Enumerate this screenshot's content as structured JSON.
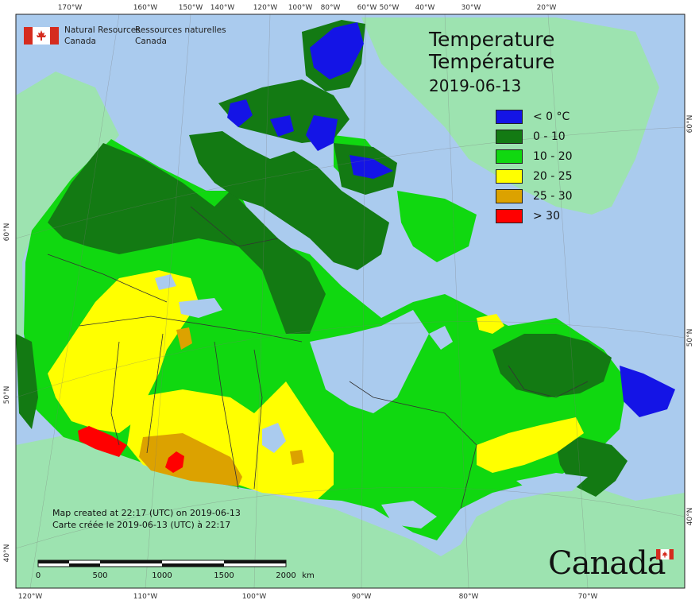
{
  "title": {
    "en": "Temperature",
    "fr": "Température",
    "date": "2019-06-13"
  },
  "organization": {
    "en": "Natural Resources\nCanada",
    "fr": "Ressources naturelles\nCanada"
  },
  "legend": [
    {
      "label": "< 0 °C",
      "color": "#1414e6"
    },
    {
      "label": "0 - 10",
      "color": "#137a13"
    },
    {
      "label": "10 - 20",
      "color": "#10d810"
    },
    {
      "label": "20 - 25",
      "color": "#ffff00"
    },
    {
      "label": "25 - 30",
      "color": "#dca200"
    },
    {
      "label": "> 30",
      "color": "#ff0000"
    }
  ],
  "colors": {
    "ocean": "#aacbee",
    "foreign_land": "#9de3b0",
    "boundary": "#333333"
  },
  "created_note": {
    "en": "Map created at 22:17 (UTC) on 2019-06-13",
    "fr": "Carte créée le 2019-06-13 (UTC) à 22:17"
  },
  "scale_bar": {
    "labels": [
      "0",
      "500",
      "1000",
      "1500",
      "2000"
    ],
    "unit": "km"
  },
  "wordmark": "Canada",
  "graticule": {
    "top": [
      "170°W",
      "160°W",
      "150°W",
      "140°W",
      "120°W",
      "100°W",
      "80°W",
      "60°W",
      "50°W",
      "40°W",
      "30°W",
      "20°W"
    ],
    "bottom": [
      "120°W",
      "110°W",
      "100°W",
      "90°W",
      "80°W",
      "70°W"
    ],
    "left": [
      "60°N",
      "50°N",
      "40°N"
    ],
    "right": [
      "60°N",
      "50°N",
      "40°N"
    ]
  }
}
